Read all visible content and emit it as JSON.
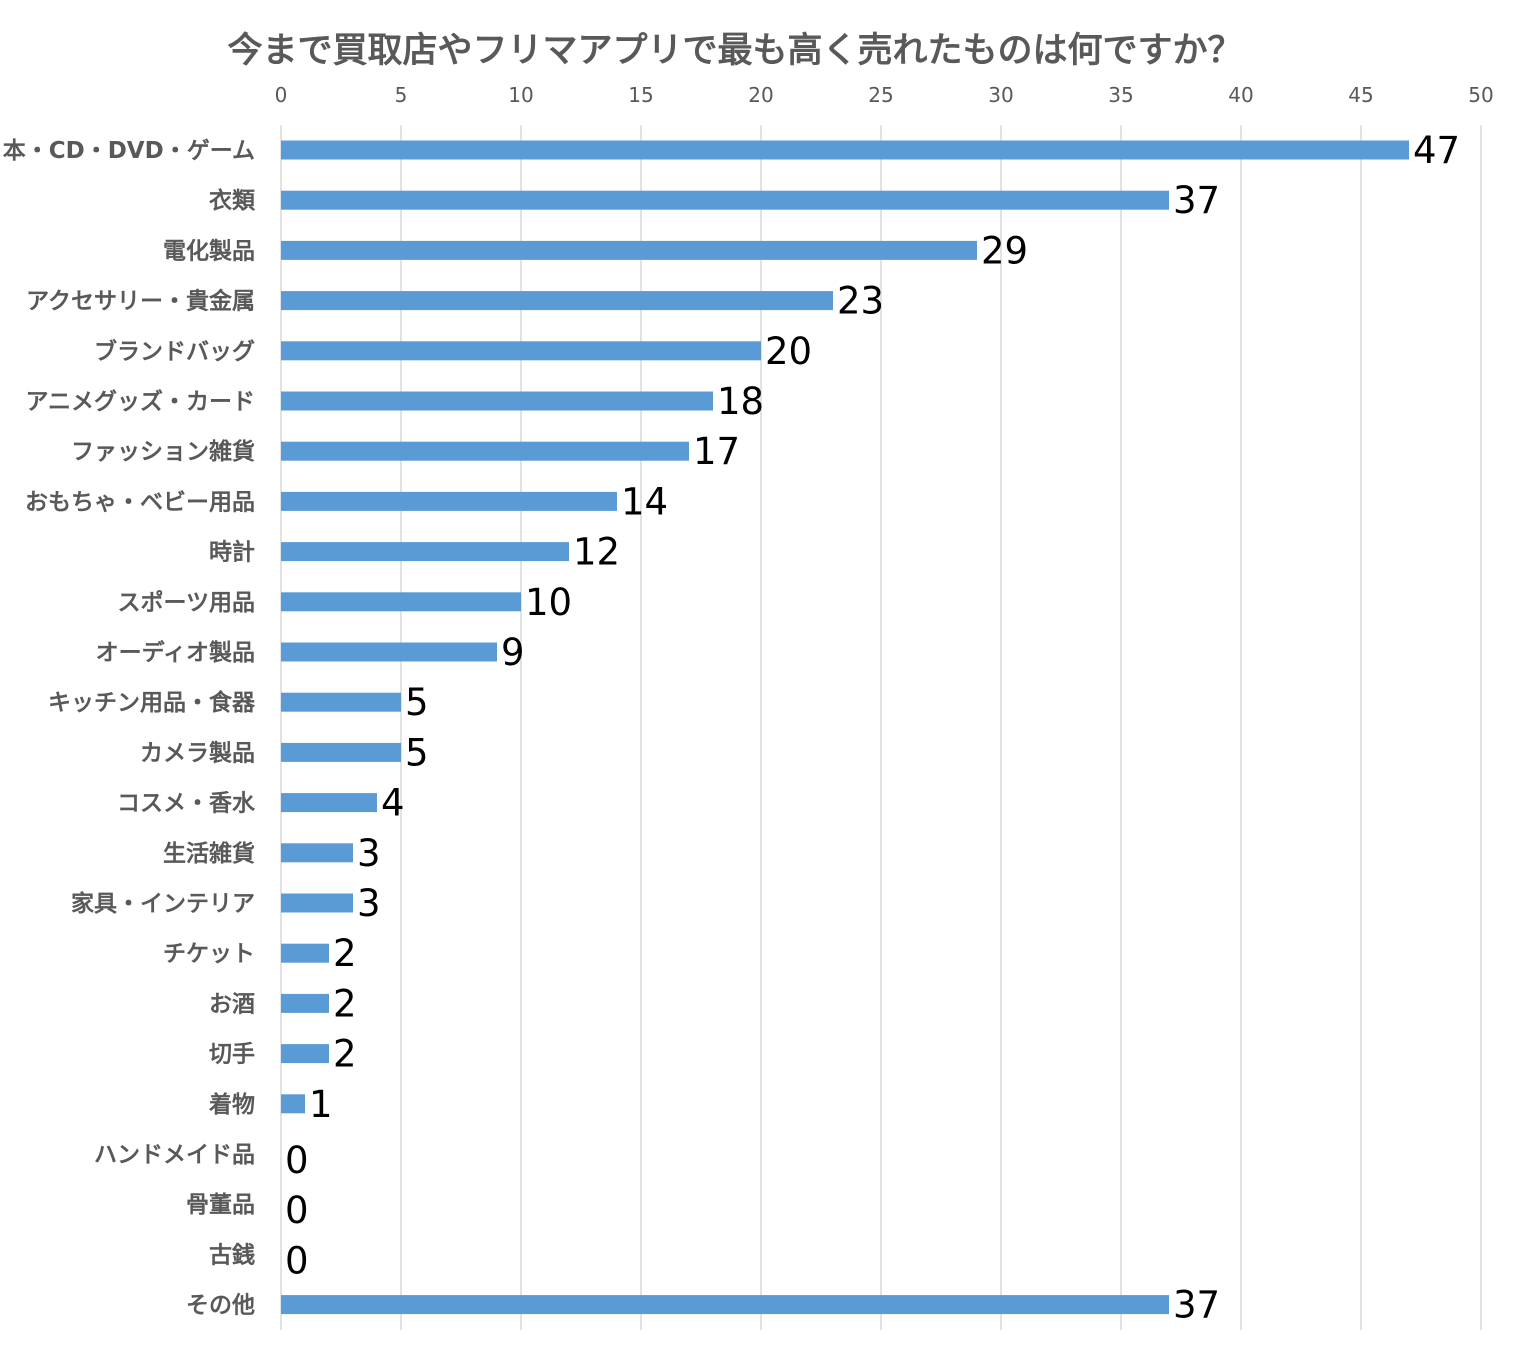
{
  "chart_data": {
    "type": "bar",
    "orientation": "horizontal",
    "title": "今まで買取店やフリマアプリで最も高く売れたものは何ですか？",
    "xlabel": "",
    "ylabel": "",
    "xlim": [
      0,
      50
    ],
    "x_ticks": [
      0,
      5,
      10,
      15,
      20,
      25,
      30,
      35,
      40,
      45,
      50
    ],
    "x_axis_position": "top",
    "grid": true,
    "legend": "none",
    "bar_color": "#5B9BD5",
    "gridline_color": "#D9D9D9",
    "categories": [
      "本・CD・DVD・ゲーム",
      "衣類",
      "電化製品",
      "アクセサリー・貴金属",
      "ブランドバッグ",
      "アニメグッズ・カード",
      "ファッション雑貨",
      "おもちゃ・ベビー用品",
      "時計",
      "スポーツ用品",
      "オーディオ製品",
      "キッチン用品・食器",
      "カメラ製品",
      "コスメ・香水",
      "生活雑貨",
      "家具・インテリア",
      "チケット",
      "お酒",
      "切手",
      "着物",
      "ハンドメイド品",
      "骨董品",
      "古銭",
      "その他"
    ],
    "values": [
      47,
      37,
      29,
      23,
      20,
      18,
      17,
      14,
      12,
      10,
      9,
      5,
      5,
      4,
      3,
      3,
      2,
      2,
      2,
      1,
      0,
      0,
      0,
      37
    ]
  }
}
